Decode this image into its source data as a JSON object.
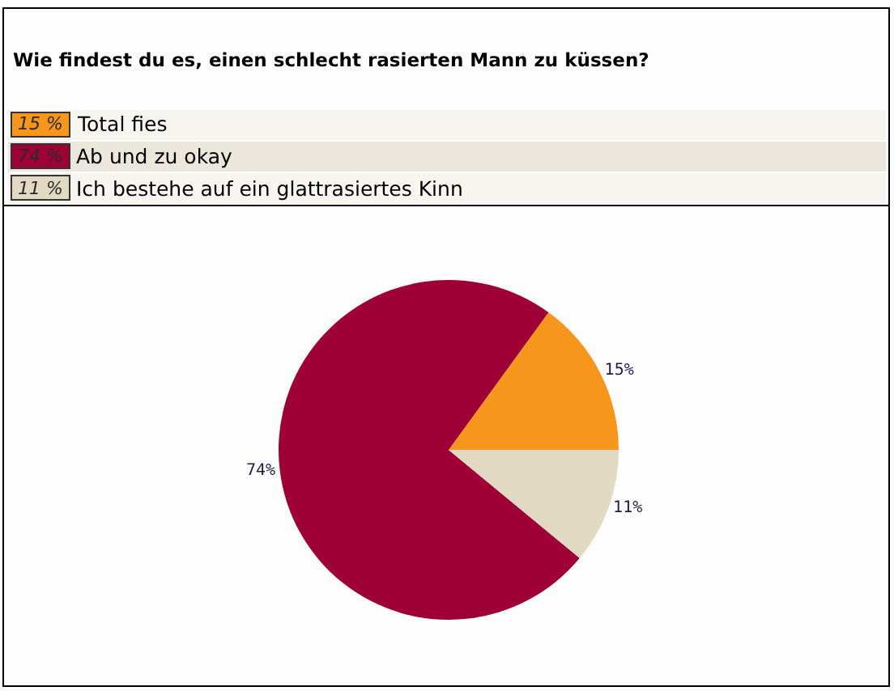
{
  "chart_data": {
    "type": "pie",
    "title": "Wie findest du es, einen schlecht rasierten Mann zu küssen?",
    "categories": [
      "Total fies",
      "Ab und zu okay",
      "Ich bestehe auf ein glattrasiertes Kinn"
    ],
    "values": [
      15,
      74,
      11
    ],
    "colors": [
      "#f7961d",
      "#9e0035",
      "#e2d9c3"
    ],
    "value_labels": [
      "15%",
      "74%",
      "11%"
    ],
    "annotations": [
      "15 %",
      "74 %",
      "11 %"
    ],
    "legend": "top"
  }
}
